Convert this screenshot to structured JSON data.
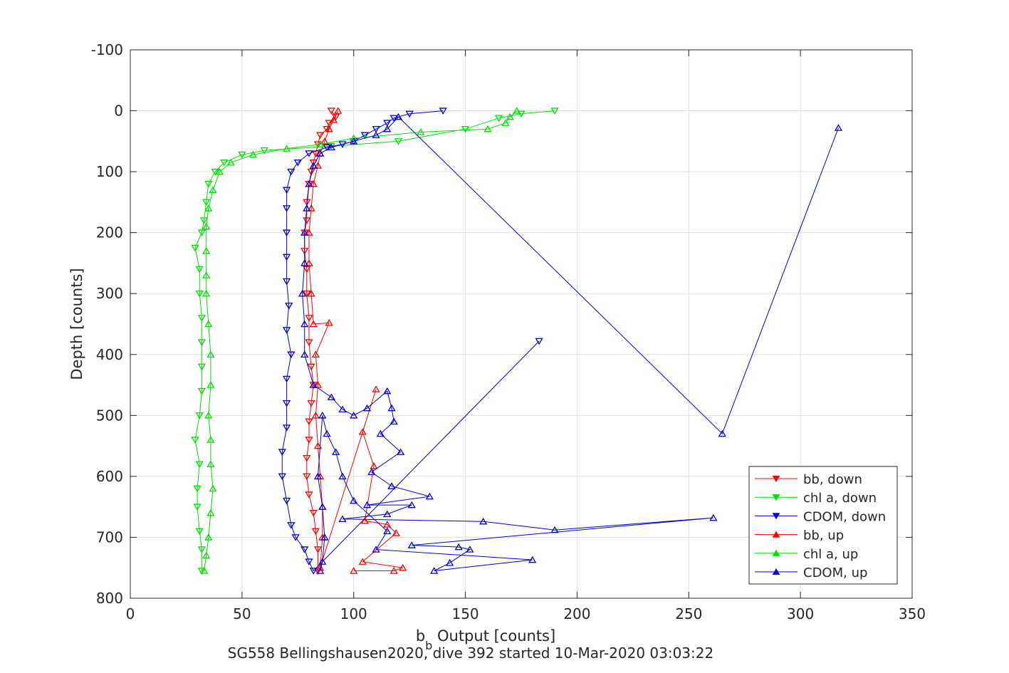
{
  "chart_data": {
    "type": "scatter",
    "xlabel_main": "b",
    "xlabel_sub": "b",
    "xlabel_rest": " Output [counts]",
    "ylabel": "Depth [counts]",
    "caption": "SG558 Bellingshausen2020, dive 392 started 10-Mar-2020 03:03:22",
    "xlim": [
      0,
      350
    ],
    "ylim": [
      -100,
      800
    ],
    "y_reversed": true,
    "grid": true,
    "legend_position": "bottom-right",
    "xticks": [
      0,
      50,
      100,
      150,
      200,
      250,
      300,
      350
    ],
    "yticks": [
      -100,
      0,
      100,
      200,
      300,
      400,
      500,
      600,
      700,
      800
    ],
    "xtick_labels": [
      "0",
      "50",
      "100",
      "150",
      "200",
      "250",
      "300",
      "350"
    ],
    "ytick_labels": [
      "-100",
      "0",
      "100",
      "200",
      "300",
      "400",
      "500",
      "600",
      "700",
      "800"
    ],
    "series": [
      {
        "name": "bb, down",
        "color": "#ff0000",
        "marker": "triangle-down",
        "points": [
          [
            90,
            0
          ],
          [
            92,
            10
          ],
          [
            89,
            20
          ],
          [
            88,
            30
          ],
          [
            85,
            40
          ],
          [
            84,
            55
          ],
          [
            83,
            70
          ],
          [
            82,
            85
          ],
          [
            81,
            100
          ],
          [
            80,
            120
          ],
          [
            79,
            150
          ],
          [
            79,
            180
          ],
          [
            78,
            200
          ],
          [
            78,
            230
          ],
          [
            79,
            260
          ],
          [
            79,
            300
          ],
          [
            80,
            340
          ],
          [
            80,
            380
          ],
          [
            81,
            420
          ],
          [
            82,
            450
          ],
          [
            81,
            480
          ],
          [
            80,
            510
          ],
          [
            80,
            540
          ],
          [
            79,
            570
          ],
          [
            79,
            600
          ],
          [
            80,
            630
          ],
          [
            82,
            660
          ],
          [
            83,
            690
          ],
          [
            84,
            720
          ],
          [
            84,
            755
          ]
        ]
      },
      {
        "name": "chl a, down",
        "color": "#00e000",
        "marker": "triangle-down",
        "points": [
          [
            190,
            0
          ],
          [
            175,
            5
          ],
          [
            165,
            12
          ],
          [
            150,
            30
          ],
          [
            120,
            50
          ],
          [
            90,
            58
          ],
          [
            60,
            65
          ],
          [
            50,
            72
          ],
          [
            42,
            85
          ],
          [
            38,
            100
          ],
          [
            35,
            120
          ],
          [
            34,
            150
          ],
          [
            33,
            180
          ],
          [
            32,
            200
          ],
          [
            29,
            225
          ],
          [
            31,
            260
          ],
          [
            31,
            300
          ],
          [
            32,
            340
          ],
          [
            32,
            380
          ],
          [
            32,
            420
          ],
          [
            32,
            460
          ],
          [
            31,
            500
          ],
          [
            29,
            540
          ],
          [
            31,
            580
          ],
          [
            30,
            620
          ],
          [
            30,
            650
          ],
          [
            31,
            690
          ],
          [
            32,
            720
          ],
          [
            32,
            755
          ]
        ]
      },
      {
        "name": "CDOM, down",
        "color": "#0000d0",
        "marker": "triangle-down",
        "points": [
          [
            140,
            0
          ],
          [
            125,
            5
          ],
          [
            118,
            12
          ],
          [
            115,
            20
          ],
          [
            110,
            30
          ],
          [
            105,
            40
          ],
          [
            100,
            50
          ],
          [
            95,
            55
          ],
          [
            88,
            60
          ],
          [
            80,
            70
          ],
          [
            75,
            85
          ],
          [
            72,
            100
          ],
          [
            70,
            130
          ],
          [
            70,
            160
          ],
          [
            70,
            200
          ],
          [
            70,
            240
          ],
          [
            70,
            280
          ],
          [
            71,
            320
          ],
          [
            70,
            360
          ],
          [
            72,
            400
          ],
          [
            70,
            440
          ],
          [
            70,
            480
          ],
          [
            70,
            520
          ],
          [
            68,
            560
          ],
          [
            68,
            600
          ],
          [
            70,
            640
          ],
          [
            72,
            680
          ],
          [
            74,
            700
          ],
          [
            78,
            720
          ],
          [
            80,
            740
          ],
          [
            82,
            755
          ],
          [
            183,
            378
          ]
        ]
      },
      {
        "name": "bb, up",
        "color": "#ff0000",
        "marker": "triangle-up",
        "points": [
          [
            93,
            0
          ],
          [
            91,
            15
          ],
          [
            89,
            30
          ],
          [
            87,
            50
          ],
          [
            85,
            70
          ],
          [
            84,
            90
          ],
          [
            82,
            120
          ],
          [
            81,
            160
          ],
          [
            80,
            200
          ],
          [
            80,
            250
          ],
          [
            81,
            300
          ],
          [
            82,
            350
          ],
          [
            89,
            348
          ],
          [
            83,
            400
          ],
          [
            84,
            450
          ],
          [
            83,
            500
          ],
          [
            84,
            550
          ],
          [
            85,
            600
          ],
          [
            86,
            650
          ],
          [
            86,
            700
          ],
          [
            85,
            750
          ],
          [
            110,
            457
          ],
          [
            104,
            527
          ],
          [
            109,
            583
          ],
          [
            105,
            673
          ],
          [
            115,
            679
          ],
          [
            119,
            693
          ],
          [
            104,
            740
          ],
          [
            122,
            750
          ],
          [
            118,
            755
          ],
          [
            100,
            755
          ]
        ]
      },
      {
        "name": "chl a, up",
        "color": "#00e000",
        "marker": "triangle-up",
        "points": [
          [
            173,
            0
          ],
          [
            170,
            10
          ],
          [
            168,
            20
          ],
          [
            160,
            30
          ],
          [
            130,
            35
          ],
          [
            100,
            45
          ],
          [
            85,
            55
          ],
          [
            70,
            62
          ],
          [
            55,
            72
          ],
          [
            45,
            85
          ],
          [
            40,
            100
          ],
          [
            37,
            130
          ],
          [
            35,
            160
          ],
          [
            34,
            190
          ],
          [
            34,
            230
          ],
          [
            34,
            270
          ],
          [
            34,
            300
          ],
          [
            35,
            350
          ],
          [
            36,
            400
          ],
          [
            36,
            450
          ],
          [
            35,
            500
          ],
          [
            36,
            540
          ],
          [
            36,
            580
          ],
          [
            37,
            620
          ],
          [
            36,
            660
          ],
          [
            35,
            700
          ],
          [
            34,
            730
          ],
          [
            33,
            755
          ]
        ]
      },
      {
        "name": "CDOM, up",
        "color": "#0000d0",
        "marker": "triangle-up",
        "points": [
          [
            317,
            28
          ],
          [
            265,
            530
          ],
          [
            120,
            10
          ],
          [
            115,
            30
          ],
          [
            110,
            40
          ],
          [
            100,
            50
          ],
          [
            90,
            60
          ],
          [
            85,
            70
          ],
          [
            82,
            90
          ],
          [
            80,
            120
          ],
          [
            79,
            160
          ],
          [
            78,
            200
          ],
          [
            78,
            250
          ],
          [
            77,
            300
          ],
          [
            78,
            350
          ],
          [
            78,
            400
          ],
          [
            82,
            450
          ],
          [
            90,
            470
          ],
          [
            95,
            490
          ],
          [
            100,
            500
          ],
          [
            106,
            488
          ],
          [
            115,
            460
          ],
          [
            117,
            488
          ],
          [
            118,
            510
          ],
          [
            112,
            530
          ],
          [
            121,
            560
          ],
          [
            108,
            593
          ],
          [
            117,
            616
          ],
          [
            134,
            633
          ],
          [
            106,
            647
          ],
          [
            126,
            647
          ],
          [
            115,
            662
          ],
          [
            95,
            670
          ],
          [
            158,
            674
          ],
          [
            190,
            688
          ],
          [
            261,
            668
          ],
          [
            126,
            713
          ],
          [
            147,
            716
          ],
          [
            152,
            720
          ],
          [
            143,
            742
          ],
          [
            136,
            755
          ],
          [
            180,
            737
          ],
          [
            110,
            720
          ],
          [
            115,
            690
          ],
          [
            100,
            640
          ],
          [
            95,
            600
          ],
          [
            92,
            560
          ],
          [
            88,
            530
          ],
          [
            86,
            500
          ],
          [
            84,
            600
          ],
          [
            86,
            650
          ],
          [
            87,
            700
          ],
          [
            86,
            740
          ],
          [
            85,
            755
          ]
        ]
      }
    ]
  }
}
